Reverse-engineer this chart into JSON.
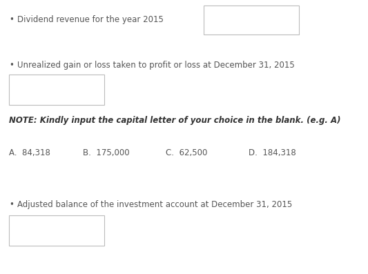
{
  "bullet1_text": "Dividend revenue for the year 2015",
  "bullet2_text": "Unrealized gain or loss taken to profit or loss at December 31, 2015",
  "note_text": "NOTE: Kindly input the capital letter of your choice in the blank. (e.g. A)",
  "choices": [
    {
      "label": "A.",
      "value": "84,318"
    },
    {
      "label": "B.",
      "value": "175,000"
    },
    {
      "label": "C.",
      "value": "62,500"
    },
    {
      "label": "D.",
      "value": "184,318"
    }
  ],
  "bullet3_text": "Adjusted balance of the investment account at December 31, 2015",
  "bg_color": "#ffffff",
  "text_color": "#555555",
  "box_edge_color": "#bbbbbb",
  "note_fontsize": 8.5,
  "body_fontsize": 8.5,
  "choice_fontsize": 8.5,
  "fig_width": 5.33,
  "fig_height": 3.97,
  "dpi": 100
}
